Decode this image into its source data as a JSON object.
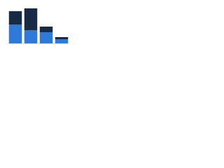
{
  "chart_data": {
    "type": "stacked-bar",
    "categories": [
      null,
      null,
      null,
      null
    ],
    "series": [
      {
        "color": "#2f7ad9",
        "values": [
          27,
          19,
          16,
          6
        ]
      },
      {
        "color": "#172b47",
        "values": [
          19,
          31,
          8,
          3
        ]
      }
    ],
    "ylim": [
      0,
      54
    ]
  }
}
